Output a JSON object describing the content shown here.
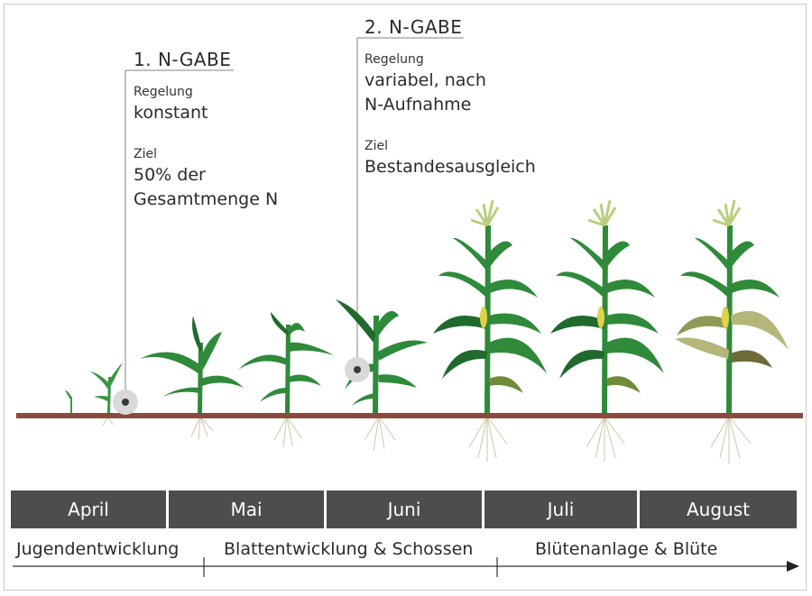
{
  "callouts": [
    {
      "heading": "1. N-GABE",
      "regelung_label": "Regelung",
      "regelung_value": "konstant",
      "ziel_label": "Ziel",
      "ziel_value_line1": "50% der",
      "ziel_value_line2": "Gesamtmenge N"
    },
    {
      "heading": "2. N-GABE",
      "regelung_label": "Regelung",
      "regelung_value_line1": "variabel, nach",
      "regelung_value_line2": "N-Aufnahme",
      "ziel_label": "Ziel",
      "ziel_value": "Bestandesausgleich"
    }
  ],
  "months": [
    "April",
    "Mai",
    "Juni",
    "Juli",
    "August"
  ],
  "phases": [
    "Jugendentwicklung",
    "Blattentwicklung & Schossen",
    "Blütenanlage & Blüte"
  ],
  "colors": {
    "soil": "#8b4a3c",
    "leaf": "#2f8a3a",
    "leaf_dark": "#1f6a2c",
    "leaf_dry": "#b5b77a",
    "cob": "#e0d24a",
    "tassel": "#b9cf7e",
    "month_bar": "#4d4d4d",
    "marker": "#bdbdbd"
  }
}
